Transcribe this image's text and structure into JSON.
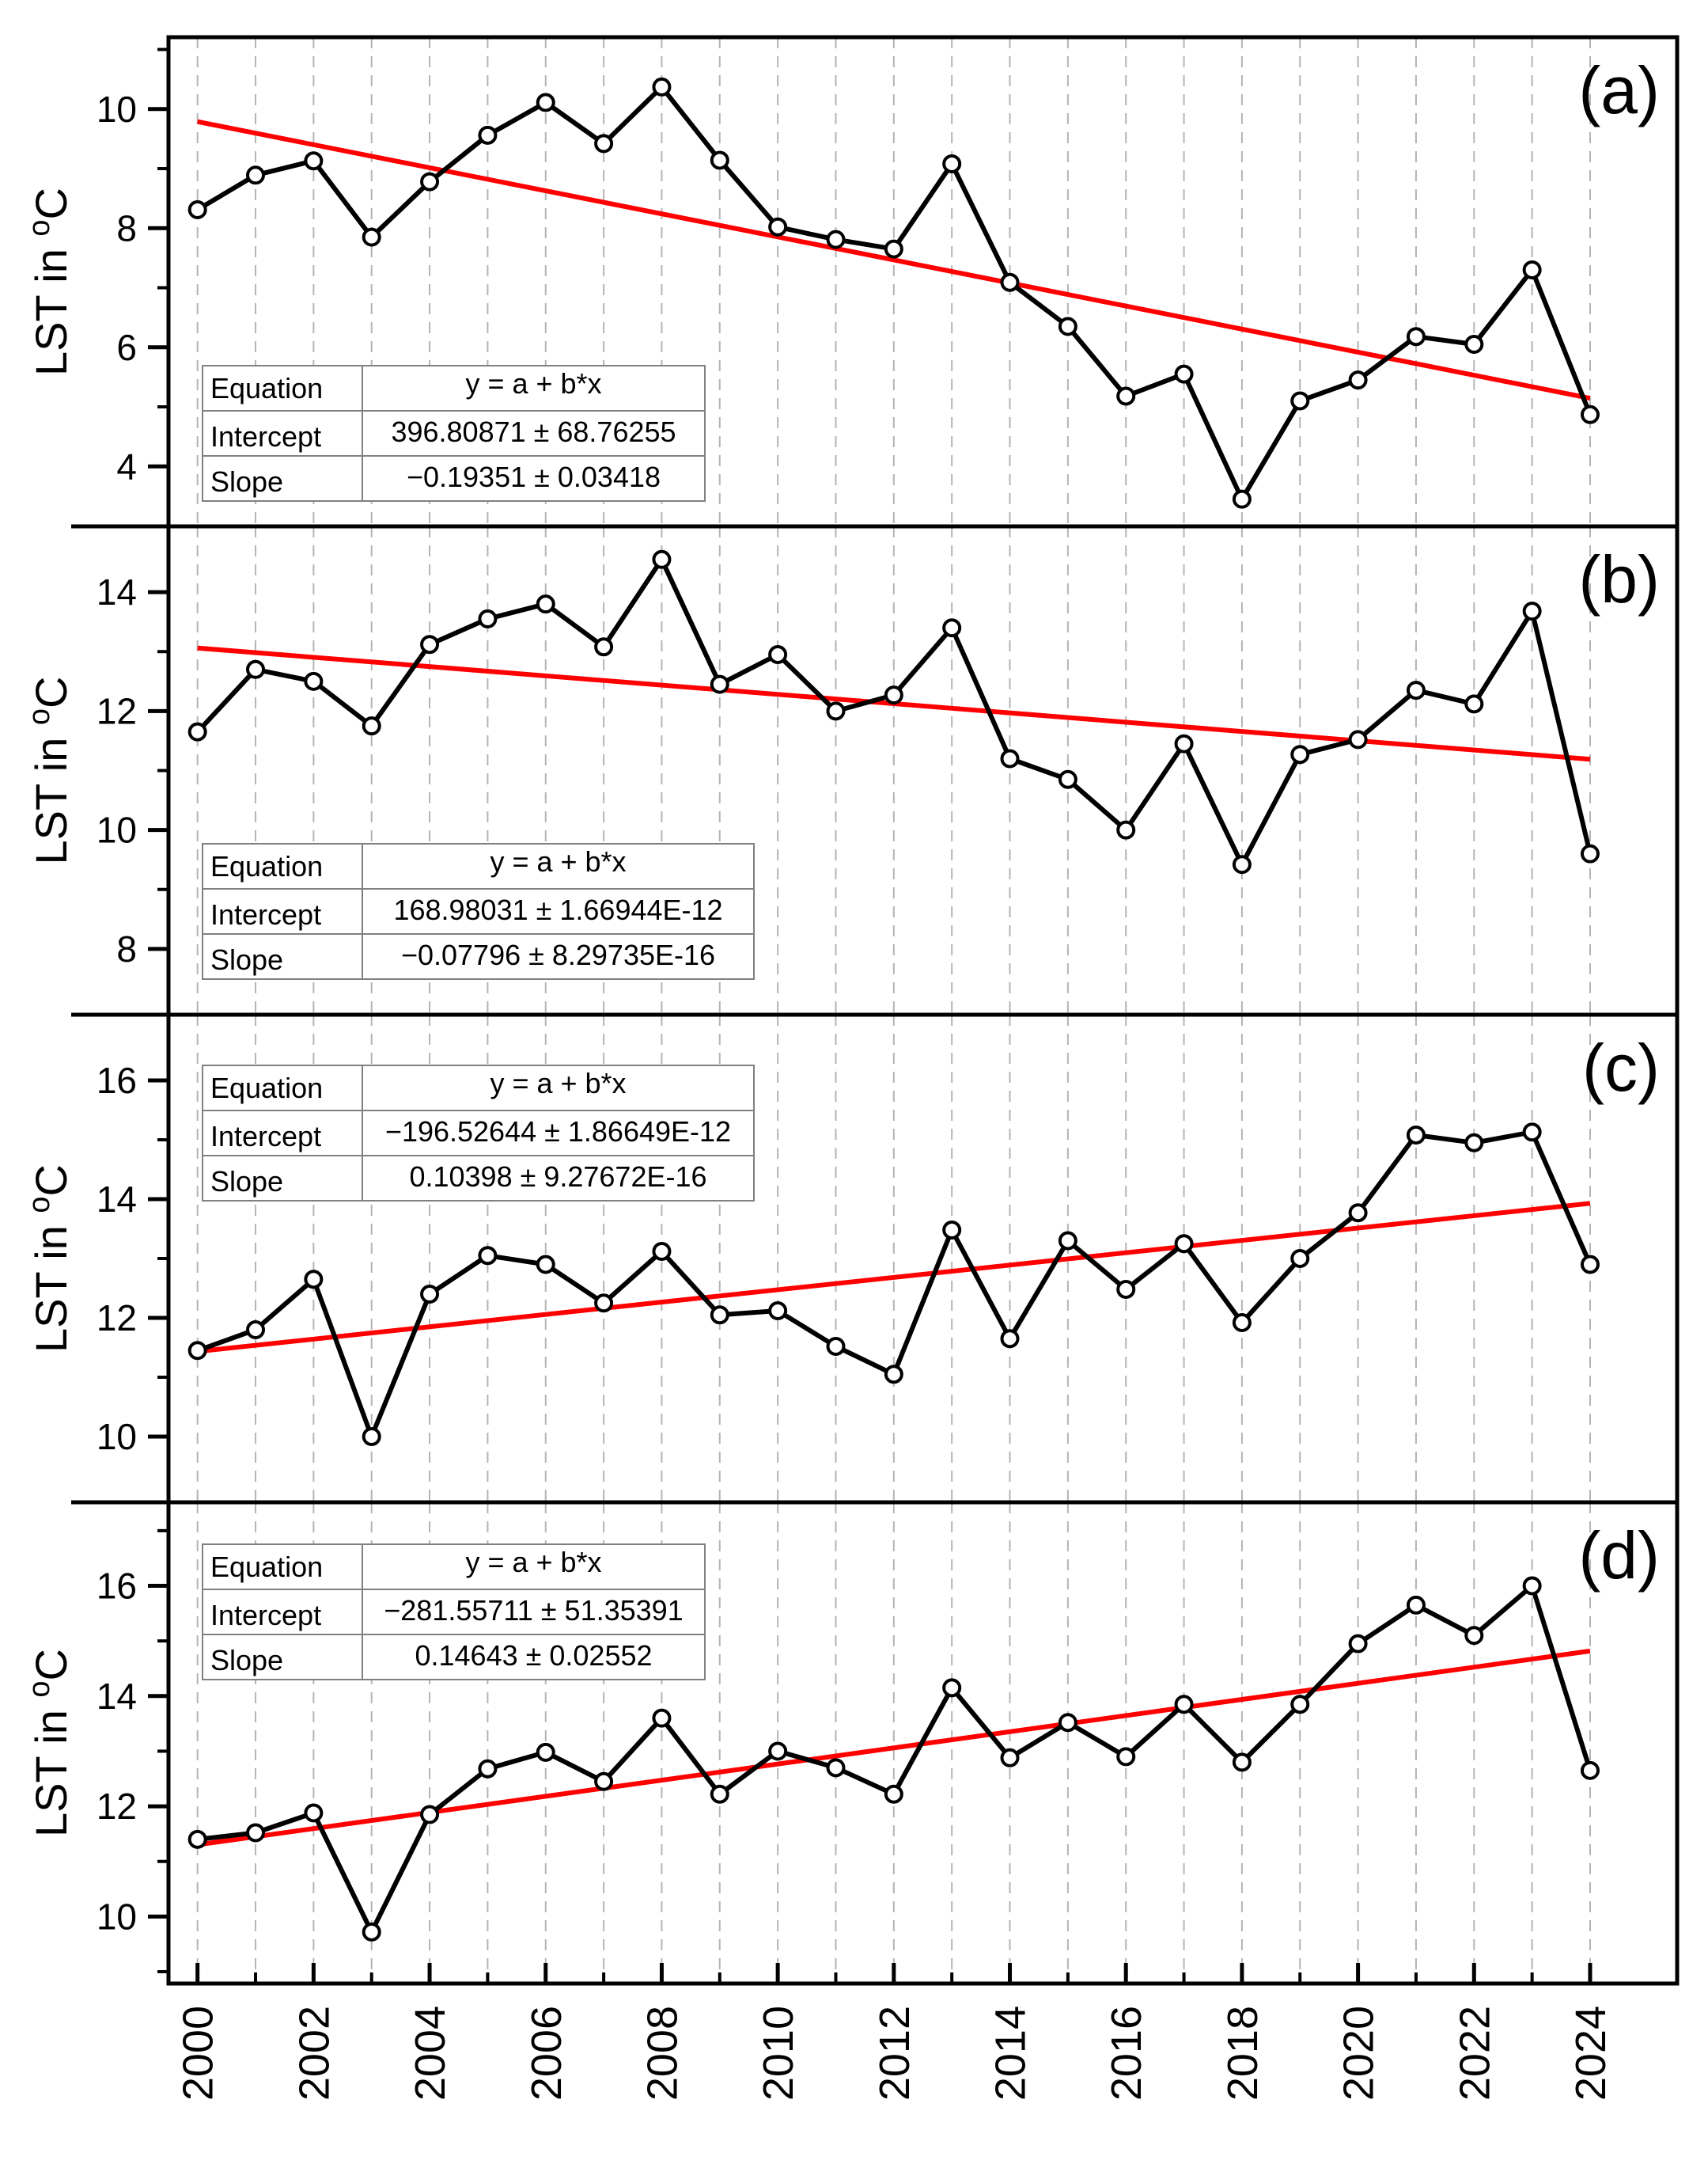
{
  "chart_data": [
    {
      "type": "line",
      "panel_label": "(a)",
      "ylabel": "LST in °C",
      "ylabel_parts": [
        "LST in ",
        "o",
        "C"
      ],
      "x": [
        2000,
        2001,
        2002,
        2003,
        2004,
        2005,
        2006,
        2007,
        2008,
        2009,
        2010,
        2011,
        2012,
        2013,
        2014,
        2015,
        2016,
        2017,
        2018,
        2019,
        2020,
        2021,
        2022,
        2023,
        2024
      ],
      "series": [
        {
          "name": "LST",
          "values": [
            8.31,
            8.89,
            9.13,
            7.85,
            8.78,
            9.56,
            10.11,
            9.42,
            10.37,
            9.14,
            8.02,
            7.81,
            7.65,
            9.08,
            7.09,
            6.35,
            5.18,
            5.55,
            3.45,
            5.1,
            5.45,
            6.18,
            6.05,
            7.3,
            4.87
          ]
        }
      ],
      "fit": {
        "intercept": 396.80871,
        "slope": -0.19351
      },
      "ylim": [
        3.1,
        11.1
      ],
      "yticks": [
        4,
        6,
        8,
        10
      ],
      "fit_table": {
        "rows": [
          [
            "Equation",
            "y = a + b*x"
          ],
          [
            "Intercept",
            "396.80871 ± 68.76255"
          ],
          [
            "Slope",
            "−0.19351 ± 0.03418"
          ]
        ]
      }
    },
    {
      "type": "line",
      "panel_label": "(b)",
      "ylabel": "LST in °C",
      "ylabel_parts": [
        "LST in ",
        "o",
        "C"
      ],
      "x": [
        2000,
        2001,
        2002,
        2003,
        2004,
        2005,
        2006,
        2007,
        2008,
        2009,
        2010,
        2011,
        2012,
        2013,
        2014,
        2015,
        2016,
        2017,
        2018,
        2019,
        2020,
        2021,
        2022,
        2023,
        2024
      ],
      "series": [
        {
          "name": "LST",
          "values": [
            11.65,
            12.7,
            12.5,
            11.75,
            13.12,
            13.55,
            13.8,
            13.08,
            14.55,
            12.45,
            12.95,
            12.0,
            12.27,
            13.4,
            11.2,
            10.85,
            10.0,
            11.45,
            9.42,
            11.27,
            11.52,
            12.35,
            12.12,
            13.68,
            9.6
          ]
        }
      ],
      "fit": {
        "intercept": 168.98031,
        "slope": -0.07796
      },
      "ylim": [
        7.0,
        15.0
      ],
      "yticks": [
        8,
        10,
        12,
        14
      ],
      "fit_table": {
        "rows": [
          [
            "Equation",
            "y = a + b*x"
          ],
          [
            "Intercept",
            "168.98031 ± 1.66944E-12"
          ],
          [
            "Slope",
            "−0.07796 ± 8.29735E-16"
          ]
        ]
      }
    },
    {
      "type": "line",
      "panel_label": "(c)",
      "ylabel": "LST in °C",
      "ylabel_parts": [
        "LST in ",
        "o",
        "C"
      ],
      "x": [
        2000,
        2001,
        2002,
        2003,
        2004,
        2005,
        2006,
        2007,
        2008,
        2009,
        2010,
        2011,
        2012,
        2013,
        2014,
        2015,
        2016,
        2017,
        2018,
        2019,
        2020,
        2021,
        2022,
        2023,
        2024
      ],
      "series": [
        {
          "name": "LST",
          "values": [
            11.45,
            11.8,
            12.65,
            10.0,
            12.4,
            13.05,
            12.9,
            12.25,
            13.12,
            12.05,
            12.12,
            11.52,
            11.05,
            13.48,
            11.65,
            13.3,
            12.48,
            13.25,
            11.92,
            13.0,
            13.77,
            15.08,
            14.95,
            15.13,
            12.9
          ]
        }
      ],
      "fit": {
        "intercept": -196.52644,
        "slope": 0.10398
      },
      "ylim": [
        9.0,
        17.0
      ],
      "yticks": [
        10,
        12,
        14,
        16
      ],
      "fit_table": {
        "rows": [
          [
            "Equation",
            "y = a + b*x"
          ],
          [
            "Intercept",
            "−196.52644 ± 1.86649E-12"
          ],
          [
            "Slope",
            "0.10398 ± 9.27672E-16"
          ]
        ]
      }
    },
    {
      "type": "line",
      "panel_label": "(d)",
      "ylabel": "LST in °C",
      "ylabel_parts": [
        "LST in ",
        "o",
        "C"
      ],
      "x": [
        2000,
        2001,
        2002,
        2003,
        2004,
        2005,
        2006,
        2007,
        2008,
        2009,
        2010,
        2011,
        2012,
        2013,
        2014,
        2015,
        2016,
        2017,
        2018,
        2019,
        2020,
        2021,
        2022,
        2023,
        2024
      ],
      "series": [
        {
          "name": "LST",
          "values": [
            11.4,
            11.52,
            11.88,
            9.72,
            11.85,
            12.68,
            12.98,
            12.45,
            13.6,
            12.22,
            13.0,
            12.7,
            12.22,
            14.15,
            12.88,
            13.52,
            12.9,
            13.85,
            12.8,
            13.85,
            14.95,
            15.65,
            15.1,
            16.0,
            12.65
          ]
        }
      ],
      "fit": {
        "intercept": -281.55711,
        "slope": 0.14643
      },
      "ylim": [
        8.9,
        17.4
      ],
      "yticks": [
        10,
        12,
        14,
        16
      ],
      "fit_table": {
        "rows": [
          [
            "Equation",
            "y = a + b*x"
          ],
          [
            "Intercept",
            "−281.55711 ± 51.35391"
          ],
          [
            "Slope",
            "0.14643 ± 0.02552"
          ]
        ]
      }
    }
  ],
  "x_axis": {
    "xlim": [
      1999.5,
      2025.5
    ],
    "ticks": [
      2000,
      2002,
      2004,
      2006,
      2008,
      2010,
      2012,
      2014,
      2016,
      2018,
      2020,
      2022,
      2024
    ],
    "tick_labels": [
      "2000",
      "2002",
      "2004",
      "2006",
      "2008",
      "2010",
      "2012",
      "2014",
      "2016",
      "2018",
      "2020",
      "2022",
      "2024"
    ],
    "grid_years": [
      2000,
      2001,
      2002,
      2003,
      2004,
      2005,
      2006,
      2007,
      2008,
      2009,
      2010,
      2011,
      2012,
      2013,
      2014,
      2015,
      2016,
      2017,
      2018,
      2019,
      2020,
      2021,
      2022,
      2023,
      2024
    ]
  },
  "colors": {
    "series": "#000000",
    "trend": "#ff0000",
    "grid": "#b4b4b4",
    "table_border": "#808080"
  }
}
